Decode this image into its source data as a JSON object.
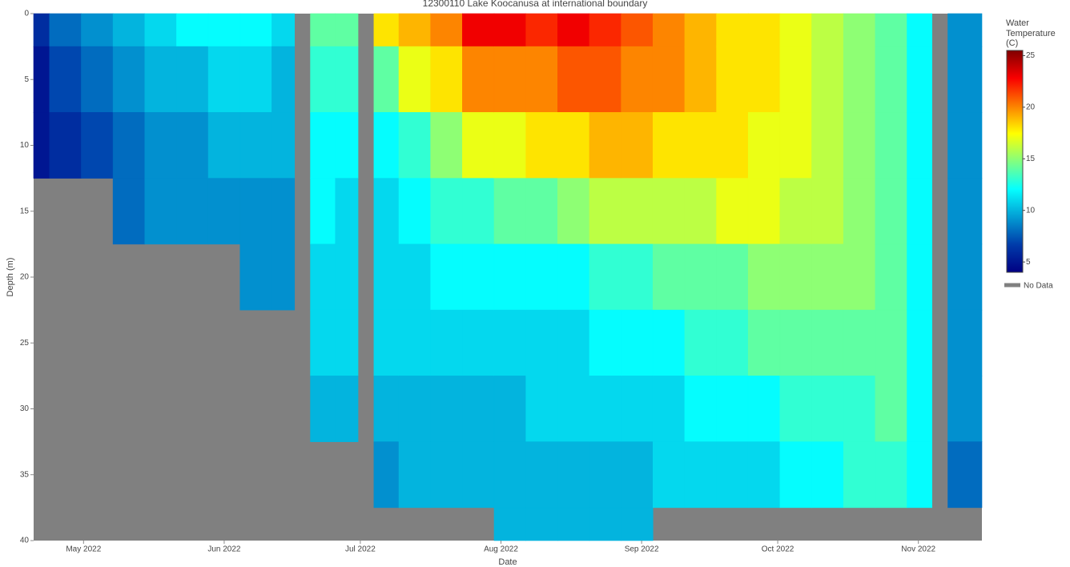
{
  "chart_data": {
    "type": "heatmap",
    "title": "12300110 Lake Koocanusa at international boundary",
    "x_label": "Date",
    "y_label": "Depth (m)",
    "x": [
      "2022-04-20",
      "2022-04-27",
      "2022-05-04",
      "2022-05-11",
      "2022-05-18",
      "2022-05-25",
      "2022-06-01",
      "2022-06-08",
      "2022-06-15",
      "2022-06-18",
      "2022-06-22",
      "2022-06-29",
      "2022-07-02",
      "2022-07-06",
      "2022-07-13",
      "2022-07-20",
      "2022-07-27",
      "2022-08-03",
      "2022-08-10",
      "2022-08-17",
      "2022-08-24",
      "2022-08-31",
      "2022-09-07",
      "2022-09-14",
      "2022-09-21",
      "2022-09-28",
      "2022-10-05",
      "2022-10-12",
      "2022-10-19",
      "2022-10-26",
      "2022-11-02",
      "2022-11-06",
      "2022-11-09"
    ],
    "y": [
      0,
      5,
      10,
      15,
      20,
      25,
      30,
      35,
      40
    ],
    "z": [
      [
        6,
        5,
        5,
        null,
        null,
        null,
        null,
        null,
        null
      ],
      [
        8,
        7,
        6,
        null,
        null,
        null,
        null,
        null,
        null
      ],
      [
        9,
        8,
        7,
        null,
        null,
        null,
        null,
        null,
        null
      ],
      [
        10,
        9,
        8,
        8,
        null,
        null,
        null,
        null,
        null
      ],
      [
        11,
        10,
        9,
        9,
        null,
        null,
        null,
        null,
        null
      ],
      [
        12,
        10,
        9,
        9,
        null,
        null,
        null,
        null,
        null
      ],
      [
        12,
        11,
        10,
        9,
        null,
        null,
        null,
        null,
        null
      ],
      [
        12,
        11,
        10,
        9,
        9,
        null,
        null,
        null,
        null
      ],
      [
        11,
        10,
        10,
        9,
        9,
        null,
        null,
        null,
        null
      ],
      [
        null,
        null,
        null,
        null,
        null,
        null,
        null,
        null,
        null
      ],
      [
        14,
        13,
        12,
        12,
        11,
        11,
        10,
        null,
        null
      ],
      [
        14,
        13,
        12,
        11,
        11,
        11,
        10,
        null,
        null
      ],
      [
        null,
        null,
        null,
        null,
        null,
        null,
        null,
        null,
        null
      ],
      [
        18,
        14,
        12,
        11,
        11,
        11,
        10,
        9,
        null
      ],
      [
        19,
        17,
        13,
        12,
        11,
        11,
        10,
        10,
        null
      ],
      [
        20,
        18,
        15,
        13,
        12,
        11,
        10,
        10,
        null
      ],
      [
        23,
        20,
        17,
        13,
        12,
        11,
        10,
        10,
        null
      ],
      [
        23,
        20,
        17,
        14,
        12,
        11,
        10,
        10,
        10
      ],
      [
        22,
        20,
        18,
        14,
        12,
        11,
        11,
        10,
        10
      ],
      [
        23,
        21,
        18,
        15,
        12,
        11,
        11,
        10,
        10
      ],
      [
        22,
        21,
        19,
        16,
        13,
        12,
        11,
        10,
        10
      ],
      [
        21,
        20,
        19,
        16,
        13,
        12,
        11,
        10,
        10
      ],
      [
        20,
        20,
        18,
        16,
        14,
        12,
        11,
        11,
        null
      ],
      [
        19,
        19,
        18,
        16,
        14,
        13,
        12,
        11,
        null
      ],
      [
        18,
        18,
        18,
        17,
        14,
        13,
        12,
        11,
        null
      ],
      [
        18,
        18,
        17,
        17,
        15,
        14,
        12,
        11,
        null
      ],
      [
        17,
        17,
        17,
        16,
        15,
        14,
        13,
        12,
        null
      ],
      [
        16,
        16,
        16,
        16,
        15,
        14,
        13,
        12,
        null
      ],
      [
        15,
        15,
        15,
        15,
        15,
        14,
        13,
        13,
        null
      ],
      [
        14,
        14,
        14,
        14,
        14,
        14,
        14,
        13,
        null
      ],
      [
        12,
        12,
        12,
        12,
        12,
        12,
        12,
        12,
        null
      ],
      [
        null,
        null,
        null,
        null,
        null,
        null,
        null,
        null,
        null
      ],
      [
        9,
        9,
        9,
        9,
        9,
        9,
        9,
        8,
        null
      ]
    ],
    "xlim": [
      "2022-04-20",
      "2022-11-15"
    ],
    "xticks": [
      {
        "value": "2022-05-01",
        "label": "May 2022"
      },
      {
        "value": "2022-06-01",
        "label": "Jun 2022"
      },
      {
        "value": "2022-07-01",
        "label": "Jul 2022"
      },
      {
        "value": "2022-08-01",
        "label": "Aug 2022"
      },
      {
        "value": "2022-09-01",
        "label": "Sep 2022"
      },
      {
        "value": "2022-10-01",
        "label": "Oct 2022"
      },
      {
        "value": "2022-11-01",
        "label": "Nov 2022"
      }
    ],
    "ylim": [
      0,
      40
    ],
    "yticks": [
      0,
      5,
      10,
      15,
      20,
      25,
      30,
      35,
      40
    ],
    "y_reversed": true,
    "colorbar_title": "Water Temperature (C)",
    "zlim": [
      4,
      25.5
    ],
    "zticks": [
      5,
      10,
      15,
      20,
      25
    ],
    "colorscale": [
      [
        0,
        "#000083"
      ],
      [
        0.125,
        "#003caa"
      ],
      [
        0.375,
        "#05ffff"
      ],
      [
        0.625,
        "#ffff00"
      ],
      [
        0.875,
        "#fa0000"
      ],
      [
        1,
        "#800000"
      ]
    ],
    "no_data_color": "#808080",
    "no_data_label": "No Data"
  }
}
